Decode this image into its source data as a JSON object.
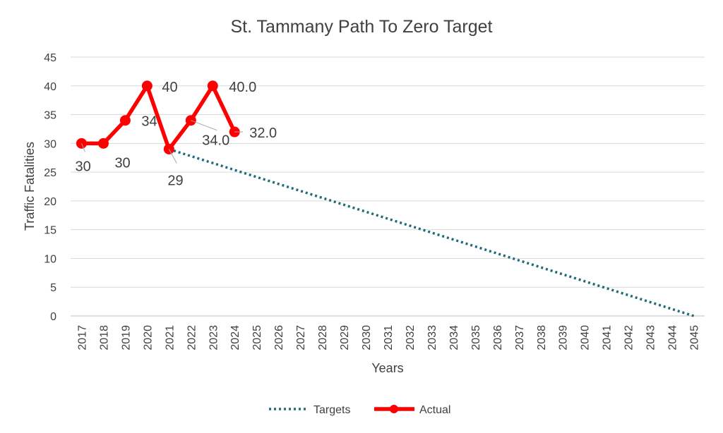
{
  "chart_data": {
    "type": "line",
    "title": "St. Tammany Path To Zero Target",
    "xlabel": "Years",
    "ylabel": "Traffic Fatalities",
    "ylim": [
      0,
      45
    ],
    "yticks": [
      0,
      5,
      10,
      15,
      20,
      25,
      30,
      35,
      40,
      45
    ],
    "grid": true,
    "legend_position": "bottom",
    "categories": [
      "2017",
      "2018",
      "2019",
      "2020",
      "2021",
      "2022",
      "2023",
      "2024",
      "2025",
      "2026",
      "2027",
      "2028",
      "2029",
      "2030",
      "2031",
      "2032",
      "2033",
      "2034",
      "2035",
      "2036",
      "2037",
      "2038",
      "2039",
      "2040",
      "2041",
      "2042",
      "2043",
      "2044",
      "2045"
    ],
    "series": [
      {
        "name": "Targets",
        "style": "dotted",
        "color": "#1f6b7a",
        "points": [
          {
            "x": "2021",
            "y": 29
          },
          {
            "x": "2045",
            "y": 0
          }
        ]
      },
      {
        "name": "Actual",
        "style": "solid-markers",
        "color": "#ff0000",
        "points": [
          {
            "x": "2017",
            "y": 30,
            "label": "30"
          },
          {
            "x": "2018",
            "y": 30,
            "label": "30"
          },
          {
            "x": "2019",
            "y": 34,
            "label": "34"
          },
          {
            "x": "2020",
            "y": 40,
            "label": "40"
          },
          {
            "x": "2021",
            "y": 29,
            "label": "29"
          },
          {
            "x": "2022",
            "y": 34,
            "label": "34.0"
          },
          {
            "x": "2023",
            "y": 40,
            "label": "40.0"
          },
          {
            "x": "2024",
            "y": 32,
            "label": "32.0"
          }
        ]
      }
    ]
  }
}
